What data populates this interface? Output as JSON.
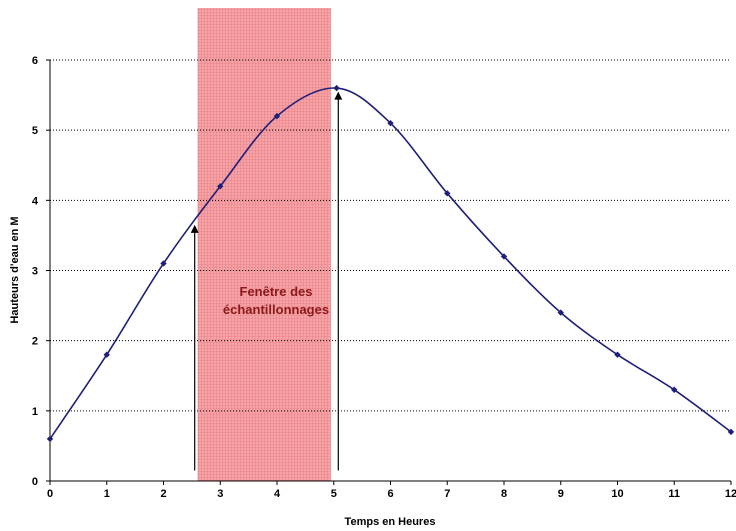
{
  "chart_data": {
    "type": "line",
    "title": "",
    "xlabel": "Temps en Heures",
    "ylabel": "Hauteurs d'eau en M",
    "xlim": [
      0,
      12
    ],
    "ylim": [
      0,
      6
    ],
    "x_ticks": [
      "0",
      "1",
      "2",
      "3",
      "4",
      "5",
      "6",
      "7",
      "8",
      "9",
      "10",
      "11",
      "12"
    ],
    "y_ticks": [
      "0",
      "1",
      "2",
      "3",
      "4",
      "5",
      "6"
    ],
    "grid": "horizontal dotted",
    "series": [
      {
        "color": "#1f1f7a",
        "smooth": true,
        "x": [
          0,
          1,
          2,
          3,
          4,
          5.05,
          6,
          7,
          8,
          9,
          10,
          11,
          12
        ],
        "y": [
          0.6,
          1.8,
          3.1,
          4.2,
          5.2,
          5.6,
          5.1,
          4.1,
          3.2,
          2.4,
          1.8,
          1.3,
          0.7
        ]
      }
    ],
    "shaded_window": {
      "x_start": 2.6,
      "x_end": 4.95,
      "label_line1": "Fenêtre des",
      "label_line2": "échantillonnages",
      "color": "#f08080"
    },
    "arrows": [
      {
        "x": 2.55,
        "y_from": 0.15,
        "y_to": 3.65
      },
      {
        "x": 5.08,
        "y_from": 0.15,
        "y_to": 5.55
      }
    ]
  }
}
